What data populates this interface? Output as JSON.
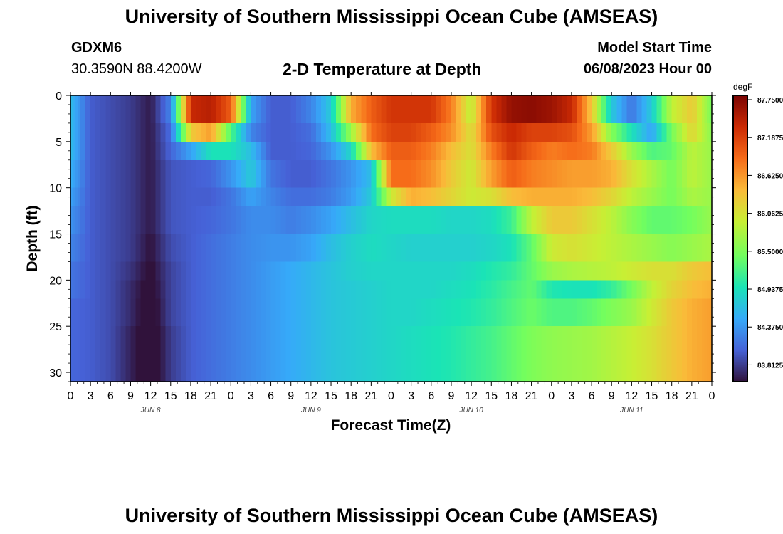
{
  "header": {
    "title": "University of Southern Mississippi Ocean Cube (AMSEAS)",
    "station": "GDXM6",
    "coords": "30.3590N  88.4200W",
    "subtitle": "2-D Temperature at Depth",
    "model_start_label": "Model Start Time",
    "model_start_value": "06/08/2023 Hour 00"
  },
  "footer": {
    "repeated_title": "University of Southern Mississippi Ocean Cube (AMSEAS)"
  },
  "colors": {
    "palette": [
      "#30123b",
      "#4662d7",
      "#36aaf9",
      "#1ae4b6",
      "#72fe5e",
      "#c8ef34",
      "#faba39",
      "#f66b19",
      "#cb2a04",
      "#7a0403"
    ]
  },
  "chart_data": {
    "type": "heatmap",
    "title": "2-D Temperature at Depth",
    "xlabel": "Forecast Time(Z)",
    "ylabel": "Depth (ft)",
    "x_unit": "hours since 06/08/2023 00Z",
    "x_range": [
      0,
      96
    ],
    "x_step": 3,
    "y_range": [
      0,
      31
    ],
    "y_inverted": true,
    "x_tick_labels": [
      "0",
      "3",
      "6",
      "9",
      "12",
      "15",
      "18",
      "21",
      "0",
      "3",
      "6",
      "9",
      "12",
      "15",
      "18",
      "21",
      "0",
      "3",
      "6",
      "9",
      "12",
      "15",
      "18",
      "21",
      "0",
      "3",
      "6",
      "9",
      "12",
      "15",
      "18",
      "21",
      "0"
    ],
    "day_labels": [
      "JUN 8",
      "JUN 9",
      "JUN 10",
      "JUN 11"
    ],
    "y_tick_labels": [
      "0",
      "5",
      "10",
      "15",
      "20",
      "25",
      "30"
    ],
    "colorbar": {
      "unit": "degF",
      "min": 83.5,
      "max": 87.75,
      "tick_labels": [
        "87.7500",
        "87.1875",
        "86.6250",
        "86.0625",
        "85.5000",
        "84.9375",
        "84.3750",
        "83.8125"
      ]
    },
    "depth_bands": [
      0,
      3,
      5,
      7,
      10,
      12,
      15,
      18,
      20,
      22,
      25,
      31
    ],
    "hours": [
      0,
      3,
      6,
      9,
      12,
      15,
      18,
      21,
      24,
      27,
      30,
      33,
      36,
      39,
      42,
      45,
      48,
      51,
      54,
      57,
      60,
      63,
      66,
      69,
      72,
      75,
      78,
      81,
      84,
      87,
      90,
      93,
      96
    ],
    "temperature_degF": [
      [
        84.6,
        83.95,
        83.85,
        83.75,
        83.55,
        84.2,
        87.3,
        87.4,
        86.9,
        84.4,
        83.95,
        83.95,
        84.2,
        84.7,
        86.4,
        86.9,
        87.2,
        87.2,
        87.2,
        86.7,
        85.8,
        87.2,
        87.6,
        87.65,
        87.55,
        87.3,
        86.2,
        84.7,
        84.1,
        84.7,
        85.8,
        86.2,
        85.4
      ],
      [
        84.6,
        83.95,
        83.85,
        83.75,
        83.55,
        84.05,
        86.2,
        86.5,
        85.2,
        84.2,
        83.95,
        83.95,
        84.05,
        84.6,
        85.6,
        86.8,
        87.1,
        87.1,
        86.9,
        86.6,
        86.0,
        87.0,
        87.3,
        87.1,
        87.1,
        87.0,
        86.5,
        85.5,
        84.9,
        84.4,
        85.4,
        86.1,
        85.5
      ],
      [
        84.6,
        83.95,
        83.85,
        83.75,
        83.55,
        84.0,
        84.4,
        84.9,
        84.9,
        84.6,
        83.95,
        83.95,
        84.0,
        84.3,
        84.8,
        86.3,
        86.9,
        86.9,
        86.7,
        86.3,
        86.0,
        86.7,
        87.2,
        86.9,
        86.7,
        86.8,
        86.7,
        86.2,
        85.6,
        85.2,
        85.3,
        85.8,
        85.6
      ],
      [
        84.5,
        83.95,
        83.85,
        83.75,
        83.55,
        83.9,
        83.95,
        84.0,
        84.3,
        84.7,
        84.1,
        83.95,
        83.95,
        84.1,
        84.3,
        84.6,
        86.8,
        86.8,
        86.6,
        86.2,
        85.9,
        86.5,
        86.9,
        86.7,
        86.6,
        86.5,
        86.5,
        86.4,
        86.0,
        85.7,
        85.4,
        85.8,
        85.6
      ],
      [
        84.4,
        83.95,
        83.85,
        83.75,
        83.55,
        83.9,
        83.95,
        83.95,
        84.1,
        84.4,
        84.2,
        84.05,
        84.05,
        84.15,
        84.35,
        84.7,
        85.9,
        86.4,
        86.3,
        86.1,
        85.9,
        86.0,
        86.3,
        86.4,
        86.4,
        86.4,
        86.3,
        86.1,
        85.8,
        85.6,
        85.4,
        85.7,
        85.6
      ],
      [
        84.3,
        83.95,
        83.85,
        83.75,
        83.55,
        83.9,
        83.95,
        84.0,
        84.1,
        84.25,
        84.25,
        84.15,
        84.25,
        84.4,
        84.6,
        84.8,
        84.85,
        84.85,
        84.85,
        84.8,
        84.8,
        84.85,
        85.1,
        85.8,
        86.2,
        86.2,
        86.0,
        85.8,
        85.5,
        85.3,
        85.3,
        85.4,
        85.6
      ],
      [
        84.2,
        83.95,
        83.85,
        83.75,
        83.5,
        83.85,
        83.95,
        84.05,
        84.15,
        84.25,
        84.3,
        84.3,
        84.4,
        84.6,
        84.75,
        84.85,
        84.8,
        84.75,
        84.75,
        84.75,
        84.75,
        84.8,
        84.9,
        85.3,
        85.9,
        86.0,
        85.9,
        85.8,
        85.7,
        85.6,
        85.5,
        85.6,
        85.7
      ],
      [
        84.1,
        83.95,
        83.85,
        83.7,
        83.45,
        83.8,
        83.95,
        84.05,
        84.15,
        84.25,
        84.35,
        84.45,
        84.55,
        84.65,
        84.75,
        84.8,
        84.8,
        84.8,
        84.8,
        84.8,
        84.85,
        84.95,
        85.05,
        85.3,
        85.6,
        85.7,
        85.75,
        85.8,
        85.9,
        86.0,
        86.0,
        86.2,
        86.3
      ],
      [
        84.1,
        83.95,
        83.85,
        83.65,
        83.4,
        83.8,
        83.95,
        84.05,
        84.15,
        84.25,
        84.35,
        84.45,
        84.55,
        84.65,
        84.7,
        84.75,
        84.8,
        84.8,
        84.8,
        84.85,
        84.9,
        85.0,
        85.15,
        85.3,
        84.95,
        84.9,
        84.9,
        85.05,
        85.4,
        85.8,
        86.1,
        86.3,
        86.4
      ],
      [
        84.0,
        83.95,
        83.85,
        83.65,
        83.35,
        83.8,
        83.95,
        84.05,
        84.15,
        84.25,
        84.35,
        84.45,
        84.55,
        84.65,
        84.7,
        84.75,
        84.8,
        84.8,
        84.85,
        84.9,
        84.95,
        85.05,
        85.2,
        85.35,
        85.2,
        85.2,
        85.3,
        85.45,
        85.6,
        85.9,
        86.2,
        86.4,
        86.5
      ],
      [
        84.0,
        83.95,
        83.85,
        83.6,
        83.3,
        83.75,
        83.95,
        84.05,
        84.15,
        84.25,
        84.35,
        84.45,
        84.55,
        84.65,
        84.7,
        84.75,
        84.8,
        84.85,
        84.9,
        84.95,
        85.05,
        85.15,
        85.3,
        85.45,
        85.55,
        85.6,
        85.65,
        85.75,
        85.85,
        86.0,
        86.2,
        86.4,
        86.5
      ]
    ]
  }
}
